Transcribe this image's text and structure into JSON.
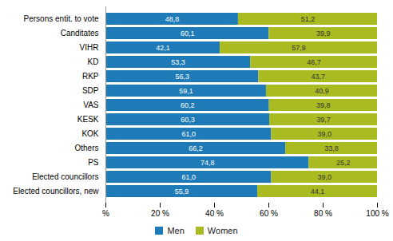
{
  "chart_data": {
    "type": "bar",
    "orientation": "horizontal",
    "stacked": true,
    "data_labels": true,
    "grid": false,
    "legend": "bottom",
    "categories": [
      "Persons entit. to vote",
      "Canditates",
      "VIHR",
      "KD",
      "RKP",
      "SDP",
      "VAS",
      "KESK",
      "KOK",
      "Others",
      "PS",
      "Elected councillors",
      "Elected councillors, new"
    ],
    "series": [
      {
        "name": "Men",
        "color": "#1F7BB8",
        "values": [
          48.8,
          60.1,
          42.1,
          53.3,
          56.3,
          59.1,
          60.2,
          60.3,
          61.0,
          66.2,
          74.8,
          61.0,
          55.9
        ],
        "value_labels": [
          "48,8",
          "60,1",
          "42,1",
          "53,3",
          "56,3",
          "59,1",
          "60,2",
          "60,3",
          "61,0",
          "66,2",
          "74,8",
          "61,0",
          "55,9"
        ]
      },
      {
        "name": "Women",
        "color": "#AABB22",
        "values": [
          51.2,
          39.9,
          57.9,
          46.7,
          43.7,
          40.9,
          39.8,
          39.7,
          39.0,
          33.8,
          25.2,
          39.0,
          44.1
        ],
        "value_labels": [
          "51,2",
          "39,9",
          "57,9",
          "46,7",
          "43,7",
          "40,9",
          "39,8",
          "39,7",
          "39,0",
          "33,8",
          "25,2",
          "39,0",
          "44,1"
        ]
      }
    ],
    "xlim": [
      0,
      100
    ],
    "xticks": [
      {
        "value": 0,
        "label": "%"
      },
      {
        "value": 20,
        "label": "20 %"
      },
      {
        "value": 40,
        "label": "40 %"
      },
      {
        "value": 60,
        "label": "60 %"
      },
      {
        "value": 80,
        "label": "80 %"
      },
      {
        "value": 100,
        "label": "100 %"
      }
    ]
  }
}
